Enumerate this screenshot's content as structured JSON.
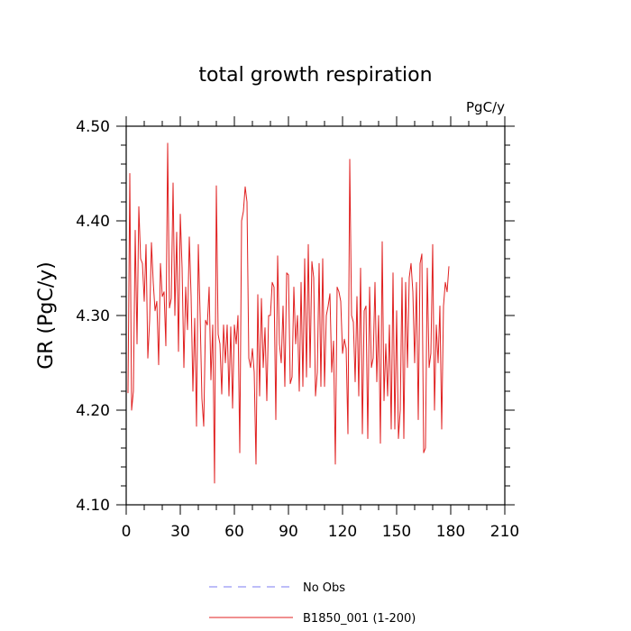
{
  "chart_data": {
    "type": "line",
    "title": "total growth respiration",
    "units_label": "PgC/y",
    "ylabel": "GR  (PgC/y)",
    "xlabel": "",
    "xlim": [
      0,
      210
    ],
    "ylim": [
      4.1,
      4.5
    ],
    "x_ticks": [
      0,
      30,
      60,
      90,
      120,
      150,
      180,
      210
    ],
    "x_tick_labels": [
      "0",
      "30",
      "60",
      "90",
      "120",
      "150",
      "180",
      "210"
    ],
    "y_ticks": [
      4.1,
      4.2,
      4.3,
      4.4,
      4.5
    ],
    "y_tick_labels": [
      "4.10",
      "4.20",
      "4.30",
      "4.40",
      "4.50"
    ],
    "legend": [
      {
        "label": "No Obs",
        "color": "#7b7bf0",
        "style": "dashed"
      },
      {
        "label": "B1850_001 (1-200)",
        "color": "#e02020",
        "style": "solid"
      }
    ],
    "series": [
      {
        "name": "B1850_001 (1-200)",
        "color": "#e02020",
        "x_start": 1,
        "x_step": 1,
        "values": [
          4.218,
          4.45,
          4.2,
          4.22,
          4.39,
          4.27,
          4.415,
          4.36,
          4.355,
          4.315,
          4.375,
          4.255,
          4.295,
          4.377,
          4.335,
          4.305,
          4.315,
          4.248,
          4.355,
          4.32,
          4.325,
          4.268,
          4.482,
          4.308,
          4.318,
          4.44,
          4.3,
          4.388,
          4.262,
          4.407,
          4.35,
          4.245,
          4.33,
          4.285,
          4.383,
          4.32,
          4.22,
          4.297,
          4.183,
          4.375,
          4.3,
          4.212,
          4.183,
          4.295,
          4.29,
          4.33,
          4.232,
          4.29,
          4.123,
          4.437,
          4.28,
          4.27,
          4.217,
          4.29,
          4.25,
          4.29,
          4.215,
          4.288,
          4.202,
          4.29,
          4.27,
          4.3,
          4.155,
          4.4,
          4.41,
          4.436,
          4.42,
          4.255,
          4.245,
          4.265,
          4.24,
          4.143,
          4.322,
          4.215,
          4.318,
          4.245,
          4.287,
          4.21,
          4.3,
          4.3,
          4.335,
          4.33,
          4.19,
          4.363,
          4.27,
          4.25,
          4.31,
          4.225,
          4.345,
          4.343,
          4.228,
          4.235,
          4.33,
          4.27,
          4.3,
          4.22,
          4.335,
          4.225,
          4.36,
          4.235,
          4.375,
          4.245,
          4.357,
          4.34,
          4.215,
          4.24,
          4.355,
          4.225,
          4.36,
          4.225,
          4.3,
          4.31,
          4.323,
          4.24,
          4.273,
          4.143,
          4.33,
          4.325,
          4.315,
          4.26,
          4.275,
          4.265,
          4.175,
          4.465,
          4.3,
          4.293,
          4.23,
          4.32,
          4.215,
          4.35,
          4.175,
          4.305,
          4.31,
          4.17,
          4.33,
          4.245,
          4.255,
          4.335,
          4.23,
          4.3,
          4.165,
          4.378,
          4.21,
          4.27,
          4.215,
          4.29,
          4.18,
          4.345,
          4.18,
          4.305,
          4.17,
          4.2,
          4.34,
          4.17,
          4.335,
          4.245,
          4.34,
          4.355,
          4.325,
          4.25,
          4.335,
          4.19,
          4.355,
          4.365,
          4.155,
          4.16,
          4.35,
          4.245,
          4.26,
          4.375,
          4.2,
          4.29,
          4.25,
          4.31,
          4.18,
          4.31,
          4.335,
          4.325,
          4.352
        ]
      }
    ]
  }
}
